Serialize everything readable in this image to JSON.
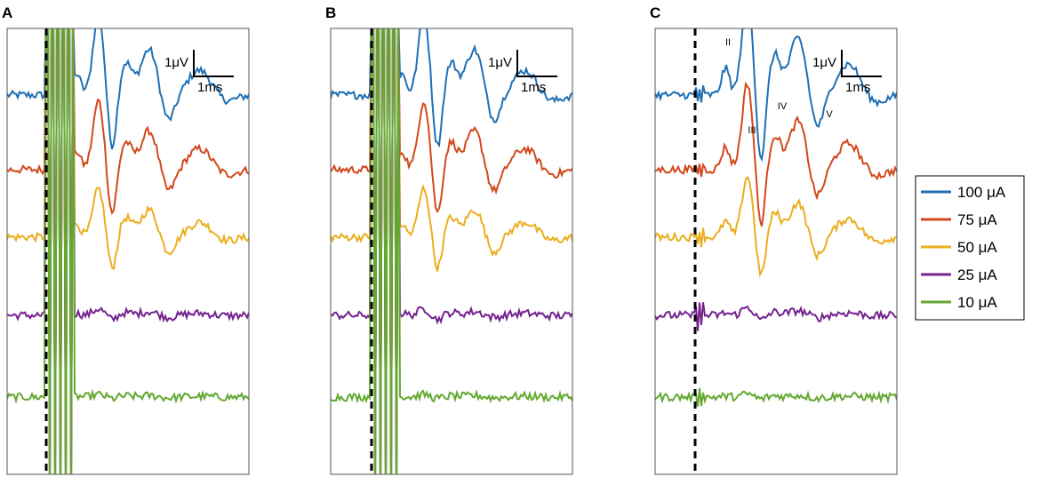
{
  "chart_data": {
    "type": "line",
    "panels": [
      {
        "label": "A",
        "artifact": "large",
        "annotated": false
      },
      {
        "label": "B",
        "artifact": "medium",
        "annotated": false
      },
      {
        "label": "C",
        "artifact": "small",
        "annotated": true
      }
    ],
    "scale_bar": {
      "amplitude": "1μV",
      "time": "1ms"
    },
    "wave_labels": [
      "II",
      "III",
      "IV",
      "V"
    ],
    "legend_title": "",
    "series": [
      {
        "name": "100 μA",
        "color": "#1f6fb5",
        "offset_uV": 4.4,
        "gain": 1.0
      },
      {
        "name": "75 μA",
        "color": "#d2481c",
        "offset_uV": 2.3,
        "gain": 0.85
      },
      {
        "name": "50 μA",
        "color": "#eaae1f",
        "offset_uV": 0.4,
        "gain": 0.6
      },
      {
        "name": "25 μA",
        "color": "#74238f",
        "offset_uV": -1.8,
        "gain": 0.08
      },
      {
        "name": "10 μA",
        "color": "#64a932",
        "offset_uV": -4.1,
        "gain": 0.03
      }
    ]
  }
}
